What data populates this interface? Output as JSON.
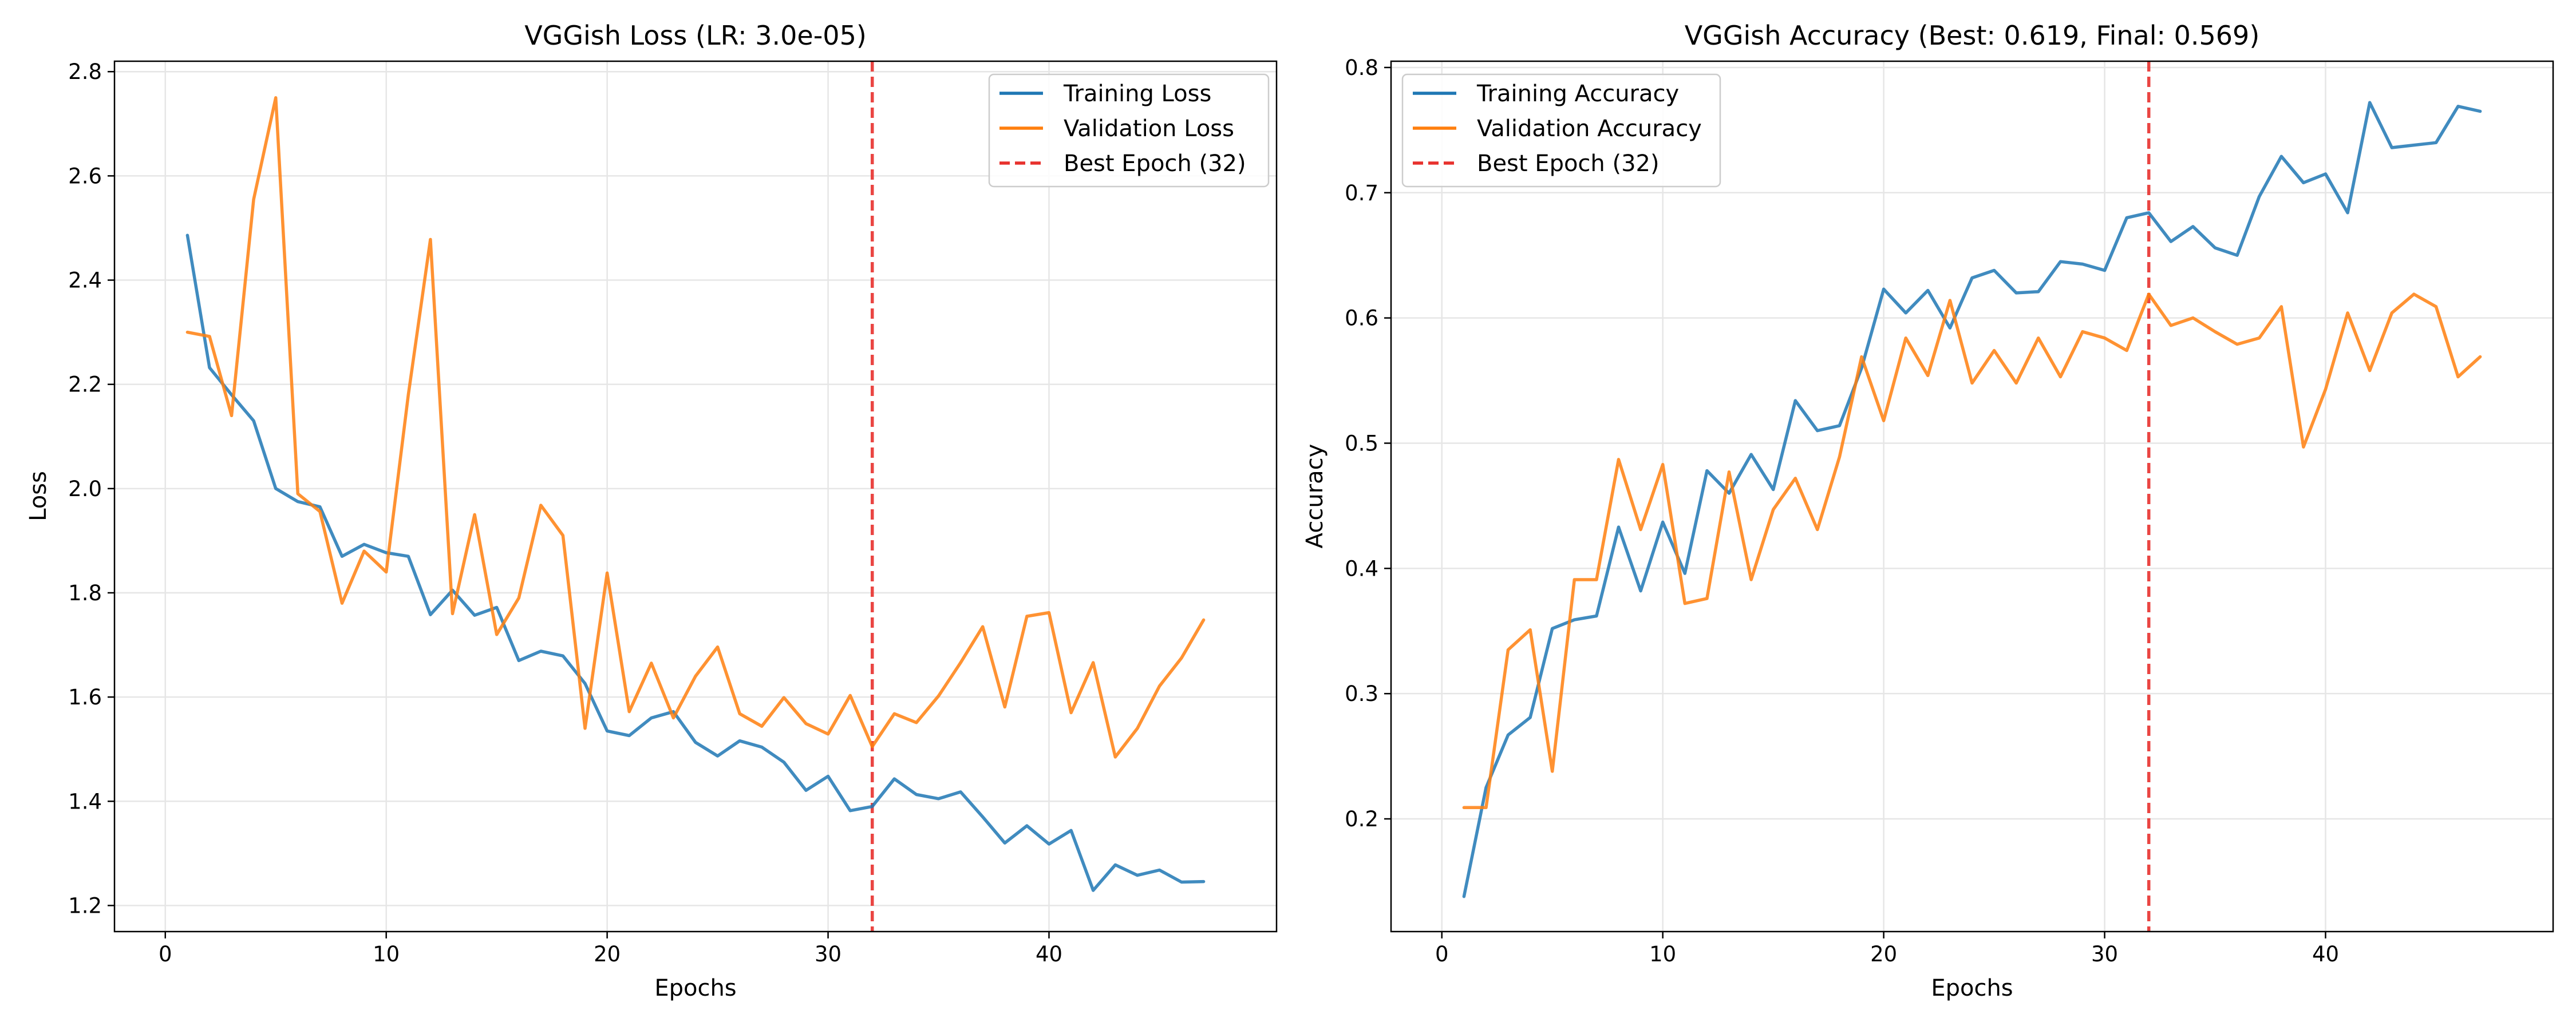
{
  "chart_data": [
    {
      "type": "line",
      "title": "VGGish Loss (LR: 3.0e-05)",
      "xlabel": "Epochs",
      "ylabel": "Loss",
      "xlim": [
        -2.3,
        50.3
      ],
      "ylim": [
        1.15,
        2.82
      ],
      "xticks": [
        0,
        10,
        20,
        30,
        40
      ],
      "yticks": [
        1.2,
        1.4,
        1.6,
        1.8,
        2.0,
        2.2,
        2.4,
        2.6,
        2.8
      ],
      "ytick_decimals": 1,
      "grid": true,
      "legend_position": "upper right",
      "x": [
        1,
        2,
        3,
        4,
        5,
        6,
        7,
        8,
        9,
        10,
        11,
        12,
        13,
        14,
        15,
        16,
        17,
        18,
        19,
        20,
        21,
        22,
        23,
        24,
        25,
        26,
        27,
        28,
        29,
        30,
        31,
        32,
        33,
        34,
        35,
        36,
        37,
        38,
        39,
        40,
        41,
        42,
        43,
        44,
        45,
        46,
        47
      ],
      "series": [
        {
          "name": "Training Loss",
          "color": "#1f77b4",
          "style": "solid",
          "values": [
            2.486,
            2.232,
            2.18,
            2.13,
            2.0,
            1.975,
            1.965,
            1.87,
            1.893,
            1.877,
            1.87,
            1.758,
            1.805,
            1.757,
            1.772,
            1.67,
            1.688,
            1.679,
            1.626,
            1.535,
            1.526,
            1.56,
            1.572,
            1.513,
            1.487,
            1.516,
            1.504,
            1.475,
            1.421,
            1.448,
            1.382,
            1.39,
            1.443,
            1.413,
            1.405,
            1.418,
            1.37,
            1.32,
            1.353,
            1.318,
            1.344,
            1.229,
            1.278,
            1.258,
            1.268,
            1.245,
            1.246
          ]
        },
        {
          "name": "Validation Loss",
          "color": "#ff7f0e",
          "style": "solid",
          "values": [
            2.3,
            2.292,
            2.14,
            2.555,
            2.75,
            1.99,
            1.956,
            1.78,
            1.88,
            1.84,
            2.18,
            2.478,
            1.76,
            1.95,
            1.72,
            1.79,
            1.968,
            1.91,
            1.54,
            1.838,
            1.572,
            1.665,
            1.56,
            1.64,
            1.696,
            1.568,
            1.544,
            1.599,
            1.549,
            1.529,
            1.603,
            1.505,
            1.568,
            1.551,
            1.602,
            1.666,
            1.735,
            1.581,
            1.755,
            1.762,
            1.57,
            1.666,
            1.485,
            1.54,
            1.621,
            1.675,
            1.748
          ]
        }
      ],
      "best_epoch": {
        "name": "Best Epoch (32)",
        "x": 32,
        "color": "#e8312d",
        "style": "dashed"
      }
    },
    {
      "type": "line",
      "title": "VGGish Accuracy (Best: 0.619, Final: 0.569)",
      "xlabel": "Epochs",
      "ylabel": "Accuracy",
      "xlim": [
        -2.3,
        50.3
      ],
      "ylim": [
        0.11,
        0.805
      ],
      "xticks": [
        0,
        10,
        20,
        30,
        40
      ],
      "yticks": [
        0.2,
        0.3,
        0.4,
        0.5,
        0.6,
        0.7,
        0.8
      ],
      "ytick_decimals": 1,
      "grid": true,
      "legend_position": "upper left",
      "x": [
        1,
        2,
        3,
        4,
        5,
        6,
        7,
        8,
        9,
        10,
        11,
        12,
        13,
        14,
        15,
        16,
        17,
        18,
        19,
        20,
        21,
        22,
        23,
        24,
        25,
        26,
        27,
        28,
        29,
        30,
        31,
        32,
        33,
        34,
        35,
        36,
        37,
        38,
        39,
        40,
        41,
        42,
        43,
        44,
        45,
        46,
        47
      ],
      "series": [
        {
          "name": "Training Accuracy",
          "color": "#1f77b4",
          "style": "solid",
          "values": [
            0.138,
            0.225,
            0.267,
            0.281,
            0.352,
            0.359,
            0.362,
            0.433,
            0.382,
            0.437,
            0.396,
            0.478,
            0.46,
            0.491,
            0.463,
            0.534,
            0.51,
            0.514,
            0.56,
            0.623,
            0.604,
            0.622,
            0.592,
            0.632,
            0.638,
            0.62,
            0.621,
            0.645,
            0.643,
            0.638,
            0.68,
            0.684,
            0.661,
            0.673,
            0.656,
            0.65,
            0.697,
            0.729,
            0.708,
            0.715,
            0.684,
            0.772,
            0.736,
            0.738,
            0.74,
            0.769,
            0.765
          ]
        },
        {
          "name": "Validation Accuracy",
          "color": "#ff7f0e",
          "style": "solid",
          "values": [
            0.209,
            0.209,
            0.335,
            0.351,
            0.238,
            0.391,
            0.391,
            0.487,
            0.431,
            0.483,
            0.372,
            0.376,
            0.477,
            0.391,
            0.447,
            0.472,
            0.431,
            0.489,
            0.569,
            0.518,
            0.584,
            0.554,
            0.614,
            0.548,
            0.574,
            0.548,
            0.584,
            0.553,
            0.589,
            0.584,
            0.574,
            0.619,
            0.594,
            0.6,
            0.589,
            0.579,
            0.584,
            0.609,
            0.497,
            0.543,
            0.604,
            0.558,
            0.604,
            0.619,
            0.609,
            0.553,
            0.569
          ]
        }
      ],
      "best_epoch": {
        "name": "Best Epoch (32)",
        "x": 32,
        "color": "#e8312d",
        "style": "dashed"
      }
    }
  ]
}
